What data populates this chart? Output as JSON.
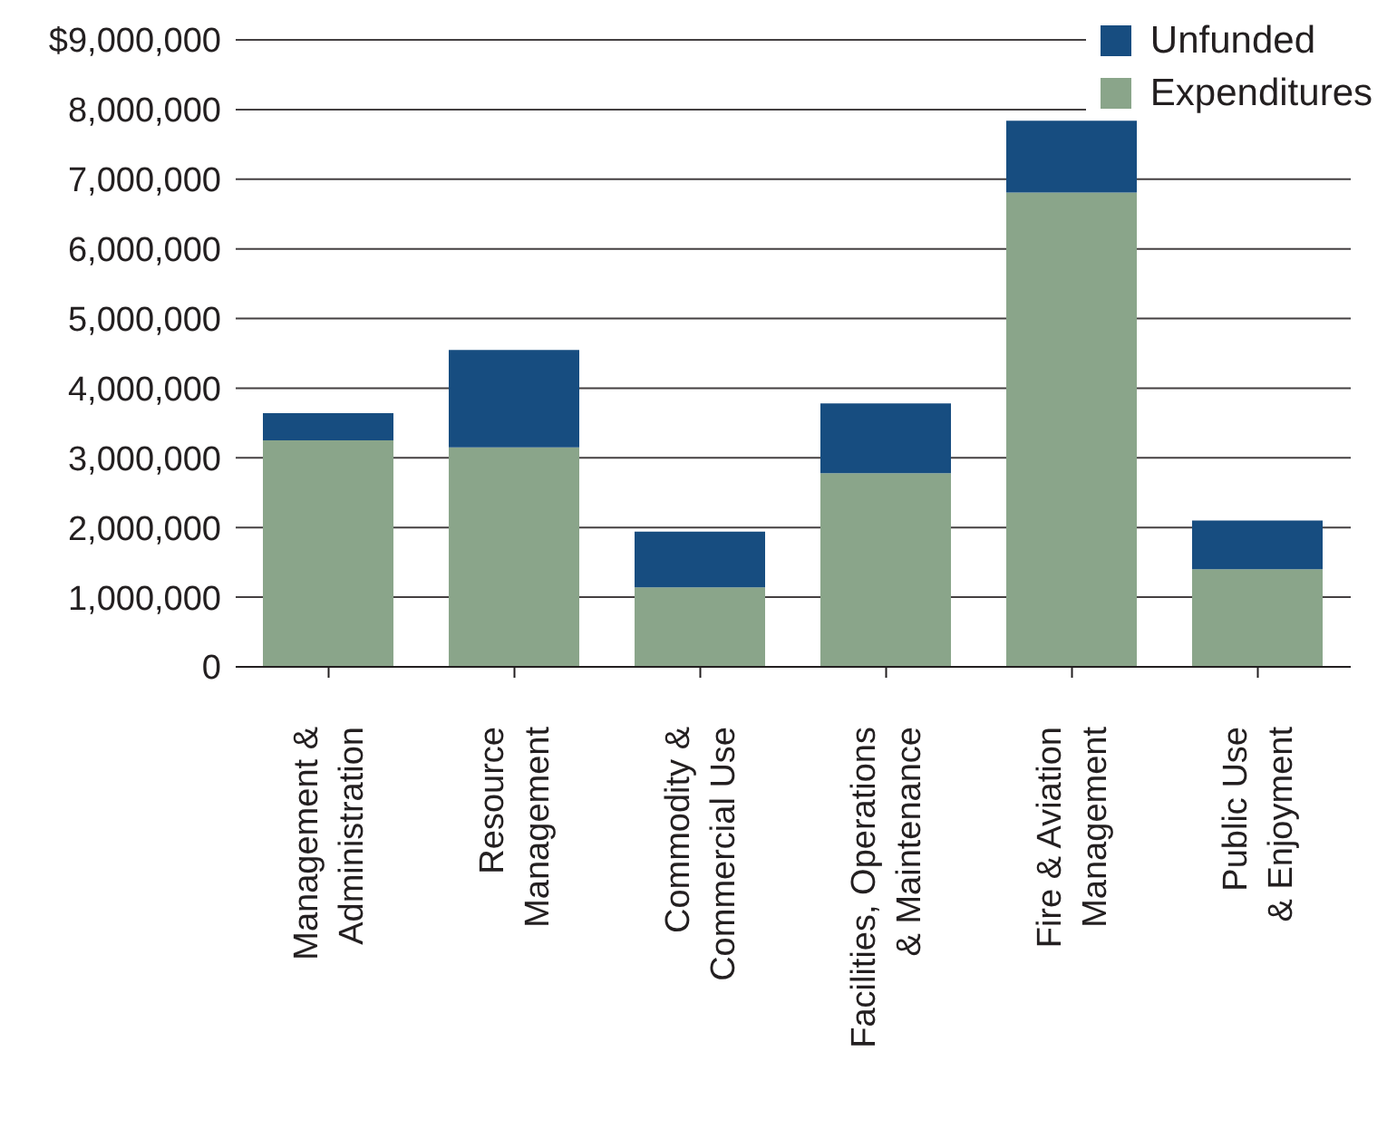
{
  "chart_data": {
    "type": "bar",
    "stacked": true,
    "categories": [
      "Management &\nAdministration",
      "Resource\nManagement",
      "Commodity &\nCommercial Use",
      "Facilities, Operations\n& Maintenance",
      "Fire & Aviation\nManagement",
      "Public Use\n& Enjoyment"
    ],
    "series": [
      {
        "name": "Expenditures",
        "color": "#8aa58a",
        "values": [
          3250000,
          3150000,
          1140000,
          2780000,
          6810000,
          1400000
        ]
      },
      {
        "name": "Unfunded",
        "color": "#174d80",
        "values": [
          390000,
          1400000,
          800000,
          1000000,
          1030000,
          700000
        ]
      }
    ],
    "ylim": [
      0,
      9000000
    ],
    "yticks": [
      0,
      {
        "value": 1000000,
        "label": "1,000,000"
      },
      {
        "value": 2000000,
        "label": "2,000,000"
      },
      {
        "value": 3000000,
        "label": "3,000,000"
      },
      {
        "value": 4000000,
        "label": "4,000,000"
      },
      {
        "value": 5000000,
        "label": "5,000,000"
      },
      {
        "value": 6000000,
        "label": "6,000,000"
      },
      {
        "value": 7000000,
        "label": "7,000,000"
      },
      {
        "value": 8000000,
        "label": "8,000,000"
      },
      {
        "value": 9000000,
        "label": "$9,000,000"
      }
    ],
    "grid": "y",
    "legend": "top right"
  }
}
